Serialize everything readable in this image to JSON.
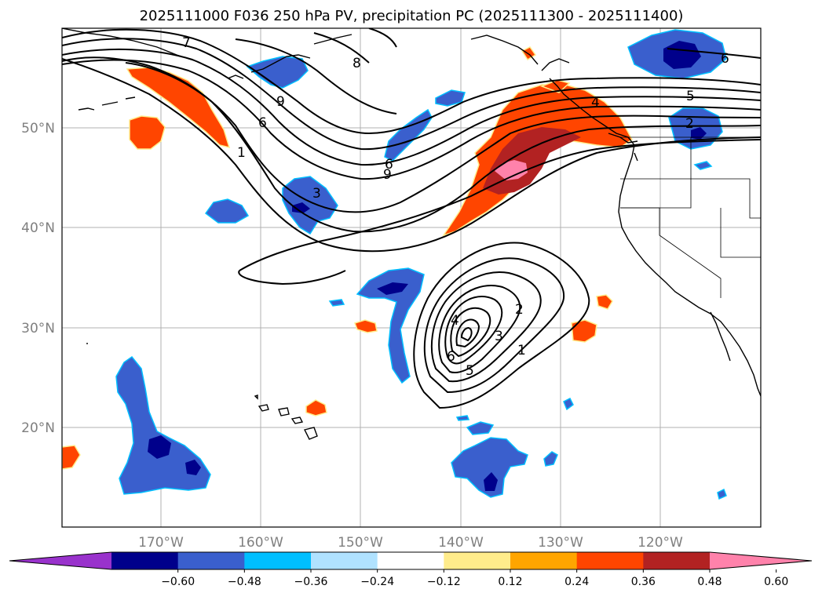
{
  "title": "2025111000 F036 250 hPa PV, precipitation PC (2025111300 - 2025111400)",
  "lat_labels": [
    "50°N",
    "40°N",
    "30°N",
    "20°N"
  ],
  "lon_labels": [
    "170°W",
    "160°W",
    "150°W",
    "140°W",
    "130°W",
    "120°W"
  ],
  "colorbar": {
    "tick_labels": [
      "−0.60",
      "−0.48",
      "−0.36",
      "−0.24",
      "−0.12",
      "0.12",
      "0.24",
      "0.36",
      "0.48",
      "0.60"
    ],
    "colors": [
      "#9932cc",
      "#00008b",
      "#3a5fcd",
      "#00bfff",
      "#b0e2ff",
      "#ffffff",
      "#ffec8b",
      "#ffa500",
      "#ff4500",
      "#b22222",
      "#ff82ab"
    ]
  },
  "contour_labels": {
    "nw_jet": [
      "7",
      "8",
      "9",
      "6",
      "1"
    ],
    "trough": [
      "3",
      "6",
      "9"
    ],
    "ridge": [
      "6",
      "5",
      "4",
      "2"
    ],
    "cutoff_low": [
      "4",
      "6",
      "5",
      "3",
      "2",
      "1"
    ]
  }
}
